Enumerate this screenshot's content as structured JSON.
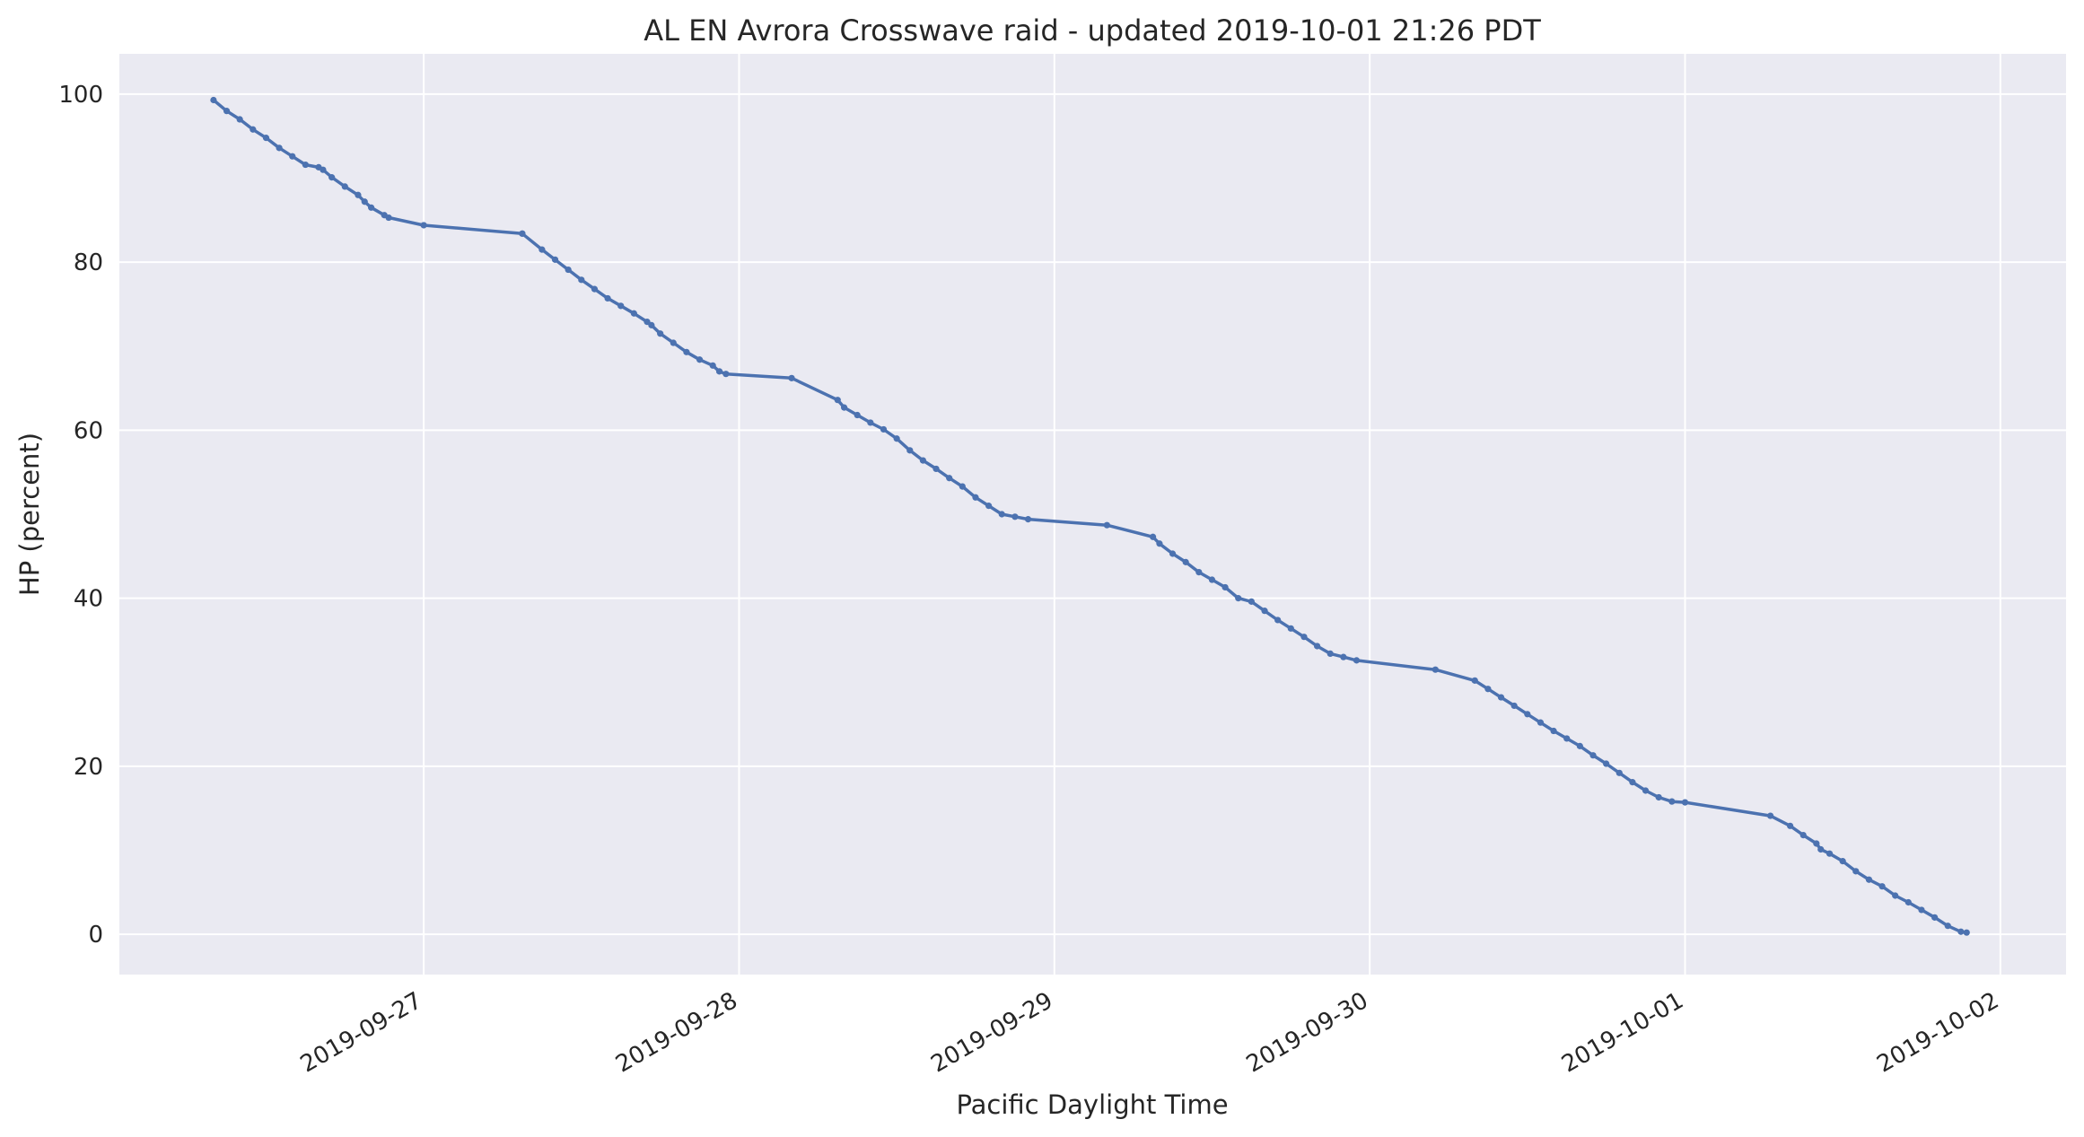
{
  "chart_data": {
    "type": "line",
    "title": "AL EN Avrora Crosswave raid - updated 2019-10-01 21:26 PDT",
    "xlabel": "Pacific Daylight Time",
    "ylabel": "HP (percent)",
    "x_axis_kind": "datetime",
    "xlim": [
      "2019-09-26 00:50",
      "2019-10-02 05:00"
    ],
    "ylim": [
      -4.8,
      104.8
    ],
    "x_ticks": [
      "2019-09-27",
      "2019-09-28",
      "2019-09-29",
      "2019-09-30",
      "2019-10-01",
      "2019-10-02"
    ],
    "y_ticks": [
      0,
      20,
      40,
      60,
      80,
      100
    ],
    "grid": true,
    "background": "#eaeaf2",
    "grid_color": "#ffffff",
    "series": [
      {
        "color": "#4c72b0",
        "x": [
          "2019-09-26 08:00",
          "2019-09-26 09:00",
          "2019-09-26 10:00",
          "2019-09-26 11:00",
          "2019-09-26 12:00",
          "2019-09-26 13:00",
          "2019-09-26 14:00",
          "2019-09-26 15:00",
          "2019-09-26 16:00",
          "2019-09-26 16:20",
          "2019-09-26 17:00",
          "2019-09-26 18:00",
          "2019-09-26 19:00",
          "2019-09-26 19:30",
          "2019-09-26 20:00",
          "2019-09-26 21:00",
          "2019-09-26 21:20",
          "2019-09-27 00:00",
          "2019-09-27 07:30",
          "2019-09-27 07:30",
          "2019-09-27 09:00",
          "2019-09-27 10:00",
          "2019-09-27 11:00",
          "2019-09-27 12:00",
          "2019-09-27 13:00",
          "2019-09-27 14:00",
          "2019-09-27 15:00",
          "2019-09-27 16:00",
          "2019-09-27 17:00",
          "2019-09-27 17:20",
          "2019-09-27 18:00",
          "2019-09-27 19:00",
          "2019-09-27 20:00",
          "2019-09-27 21:00",
          "2019-09-27 22:00",
          "2019-09-27 22:30",
          "2019-09-27 23:00",
          "2019-09-28 04:00",
          "2019-09-28 07:30",
          "2019-09-28 08:00",
          "2019-09-28 09:00",
          "2019-09-28 10:00",
          "2019-09-28 11:00",
          "2019-09-28 12:00",
          "2019-09-28 13:00",
          "2019-09-28 14:00",
          "2019-09-28 15:00",
          "2019-09-28 16:00",
          "2019-09-28 17:00",
          "2019-09-28 18:00",
          "2019-09-28 19:00",
          "2019-09-28 20:00",
          "2019-09-28 21:00",
          "2019-09-28 22:00",
          "2019-09-29 04:00",
          "2019-09-29 07:30",
          "2019-09-29 08:00",
          "2019-09-29 09:00",
          "2019-09-29 10:00",
          "2019-09-29 11:00",
          "2019-09-29 12:00",
          "2019-09-29 13:00",
          "2019-09-29 14:00",
          "2019-09-29 15:00",
          "2019-09-29 16:00",
          "2019-09-29 17:00",
          "2019-09-29 18:00",
          "2019-09-29 19:00",
          "2019-09-29 20:00",
          "2019-09-29 21:00",
          "2019-09-29 22:00",
          "2019-09-29 23:00",
          "2019-09-30 05:00",
          "2019-09-30 08:00",
          "2019-09-30 09:00",
          "2019-09-30 10:00",
          "2019-09-30 11:00",
          "2019-09-30 12:00",
          "2019-09-30 13:00",
          "2019-09-30 14:00",
          "2019-09-30 15:00",
          "2019-09-30 16:00",
          "2019-09-30 17:00",
          "2019-09-30 18:00",
          "2019-09-30 19:00",
          "2019-09-30 20:00",
          "2019-09-30 21:00",
          "2019-09-30 22:00",
          "2019-09-30 23:00",
          "2019-10-01 00:00",
          "2019-10-01 06:30",
          "2019-10-01 08:00",
          "2019-10-01 09:00",
          "2019-10-01 10:00",
          "2019-10-01 10:20",
          "2019-10-01 11:00",
          "2019-10-01 12:00",
          "2019-10-01 13:00",
          "2019-10-01 14:00",
          "2019-10-01 15:00",
          "2019-10-01 16:00",
          "2019-10-01 17:00",
          "2019-10-01 18:00",
          "2019-10-01 19:00",
          "2019-10-01 20:00",
          "2019-10-01 21:00",
          "2019-10-01 21:26"
        ],
        "y": [
          99.3,
          98.0,
          97.0,
          95.8,
          94.8,
          93.6,
          92.6,
          91.6,
          91.3,
          91.0,
          90.1,
          89.0,
          88.0,
          87.2,
          86.5,
          85.6,
          85.3,
          84.4,
          83.4,
          83.4,
          81.5,
          80.3,
          79.1,
          77.9,
          76.8,
          75.7,
          74.8,
          73.9,
          72.9,
          72.5,
          71.5,
          70.4,
          69.3,
          68.4,
          67.7,
          67.0,
          66.7,
          66.2,
          63.6,
          62.7,
          61.8,
          60.9,
          60.1,
          59.0,
          57.6,
          56.4,
          55.4,
          54.3,
          53.3,
          52.0,
          51.0,
          50.0,
          49.7,
          49.4,
          48.7,
          47.3,
          46.5,
          45.3,
          44.3,
          43.1,
          42.2,
          41.3,
          40.0,
          39.6,
          38.5,
          37.4,
          36.4,
          35.4,
          34.3,
          33.4,
          33.0,
          32.6,
          31.5,
          30.2,
          29.2,
          28.2,
          27.2,
          26.2,
          25.2,
          24.2,
          23.3,
          22.4,
          21.3,
          20.3,
          19.2,
          18.1,
          17.1,
          16.3,
          15.8,
          15.7,
          14.1,
          12.9,
          11.8,
          10.8,
          10.1,
          9.6,
          8.7,
          7.5,
          6.5,
          5.7,
          4.6,
          3.8,
          2.9,
          2.0,
          1.0,
          0.3,
          0.2
        ]
      }
    ]
  }
}
